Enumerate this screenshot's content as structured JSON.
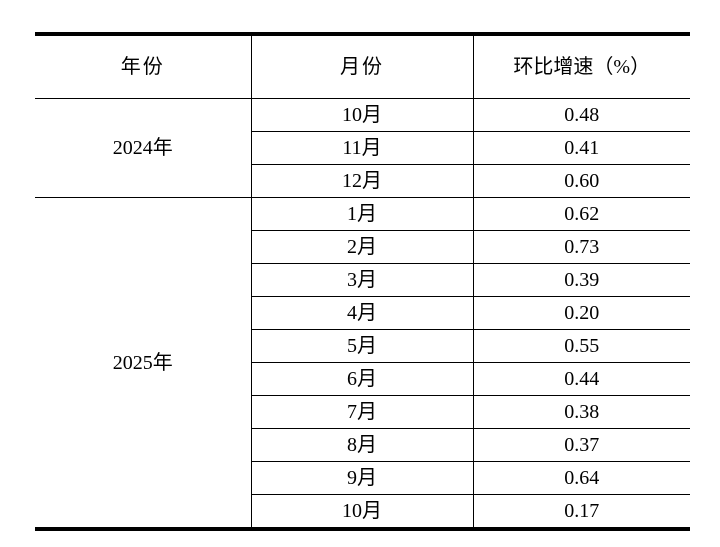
{
  "table": {
    "headers": {
      "year": "年份",
      "month": "月份",
      "growth": "环比增速（%）"
    },
    "groups": [
      {
        "year": "2024年",
        "rows": [
          {
            "month": "10月",
            "value": "0.48"
          },
          {
            "month": "11月",
            "value": "0.41"
          },
          {
            "month": "12月",
            "value": "0.60"
          }
        ]
      },
      {
        "year": "2025年",
        "rows": [
          {
            "month": "1月",
            "value": "0.62"
          },
          {
            "month": "2月",
            "value": "0.73"
          },
          {
            "month": "3月",
            "value": "0.39"
          },
          {
            "month": "4月",
            "value": "0.20"
          },
          {
            "month": "5月",
            "value": "0.55"
          },
          {
            "month": "6月",
            "value": "0.44"
          },
          {
            "month": "7月",
            "value": "0.38"
          },
          {
            "month": "8月",
            "value": "0.37"
          },
          {
            "month": "9月",
            "value": "0.64"
          },
          {
            "month": "10月",
            "value": "0.17"
          }
        ]
      }
    ]
  },
  "chart_data": {
    "type": "table",
    "columns": [
      "年份",
      "月份",
      "环比增速（%）"
    ],
    "rows": [
      [
        "2024年",
        "10月",
        0.48
      ],
      [
        "2024年",
        "11月",
        0.41
      ],
      [
        "2024年",
        "12月",
        0.6
      ],
      [
        "2025年",
        "1月",
        0.62
      ],
      [
        "2025年",
        "2月",
        0.73
      ],
      [
        "2025年",
        "3月",
        0.39
      ],
      [
        "2025年",
        "4月",
        0.2
      ],
      [
        "2025年",
        "5月",
        0.55
      ],
      [
        "2025年",
        "6月",
        0.44
      ],
      [
        "2025年",
        "7月",
        0.38
      ],
      [
        "2025年",
        "8月",
        0.37
      ],
      [
        "2025年",
        "9月",
        0.64
      ],
      [
        "2025年",
        "10月",
        0.17
      ]
    ],
    "layout": {
      "grid": "inner-rules",
      "thick_top_bottom_border": true,
      "year_column_rowspan": [
        3,
        10
      ]
    },
    "colors": {
      "text": "#000000",
      "border": "#000000",
      "background": "#ffffff"
    }
  }
}
